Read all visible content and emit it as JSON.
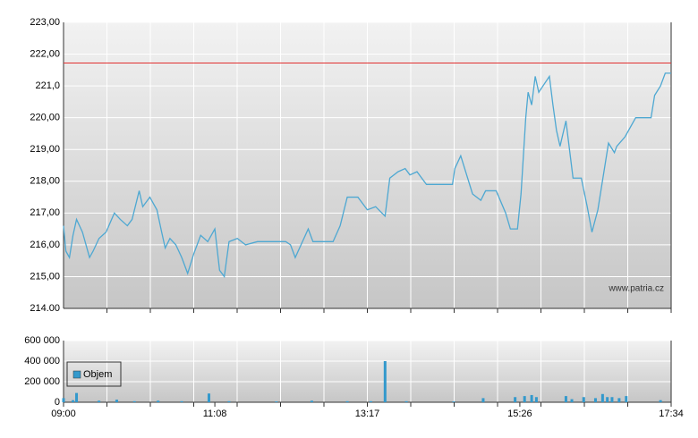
{
  "chart_data": [
    {
      "type": "line",
      "color": "#4ea8d2",
      "x": [
        "09:00",
        "09:02",
        "09:05",
        "09:08",
        "09:11",
        "09:16",
        "09:22",
        "09:25",
        "09:30",
        "09:36",
        "09:43",
        "09:48",
        "09:54",
        "09:58",
        "10:04",
        "10:07",
        "10:13",
        "10:19",
        "10:23",
        "10:26",
        "10:30",
        "10:35",
        "10:40",
        "10:45",
        "10:50",
        "10:56",
        "11:02",
        "11:08",
        "11:12",
        "11:16",
        "11:20",
        "11:27",
        "11:34",
        "11:44",
        "11:53",
        "12:08",
        "12:12",
        "12:16",
        "12:27",
        "12:31",
        "12:39",
        "12:48",
        "12:54",
        "13:00",
        "13:09",
        "13:17",
        "13:24",
        "13:32",
        "13:36",
        "13:43",
        "13:49",
        "13:53",
        "13:59",
        "14:07",
        "14:17",
        "14:29",
        "14:31",
        "14:36",
        "14:46",
        "14:53",
        "14:57",
        "15:06",
        "15:14",
        "15:18",
        "15:24",
        "15:27",
        "15:31",
        "15:33",
        "15:36",
        "15:39",
        "15:42",
        "15:51",
        "15:54",
        "15:57",
        "16:00",
        "16:05",
        "16:08",
        "16:11",
        "16:18",
        "16:23",
        "16:27",
        "16:32",
        "16:41",
        "16:46",
        "16:48",
        "16:55",
        "17:04",
        "17:17",
        "17:20",
        "17:25",
        "17:29",
        "17:34"
      ],
      "values": [
        216.6,
        215.8,
        215.6,
        216.3,
        216.8,
        216.4,
        215.6,
        215.8,
        216.2,
        216.4,
        217.0,
        216.8,
        216.6,
        216.8,
        217.7,
        217.2,
        217.5,
        217.1,
        216.4,
        215.9,
        216.2,
        216.0,
        215.6,
        215.1,
        215.7,
        216.3,
        216.1,
        216.5,
        215.2,
        215.0,
        216.1,
        216.2,
        216.0,
        216.1,
        216.1,
        216.1,
        216.0,
        215.6,
        216.5,
        216.1,
        216.1,
        216.1,
        216.6,
        217.5,
        217.5,
        217.1,
        217.2,
        216.9,
        218.1,
        218.3,
        218.4,
        218.2,
        218.3,
        217.9,
        217.9,
        217.9,
        218.4,
        218.8,
        217.6,
        217.4,
        217.7,
        217.7,
        217.0,
        216.5,
        216.5,
        217.6,
        220.0,
        220.8,
        220.4,
        221.3,
        220.8,
        221.3,
        220.4,
        219.6,
        219.1,
        219.9,
        219.0,
        218.1,
        218.1,
        217.2,
        216.4,
        217.1,
        219.2,
        218.9,
        219.1,
        219.4,
        220.0,
        220.0,
        220.7,
        221.0,
        221.4,
        221.4
      ],
      "xlim": [
        "09:00",
        "17:34"
      ],
      "ylim": [
        214,
        223
      ],
      "yticks": [
        {
          "value": 214,
          "label": "214.00"
        },
        {
          "value": 215,
          "label": "215,00"
        },
        {
          "value": 216,
          "label": "216,00"
        },
        {
          "value": 217,
          "label": "217,00"
        },
        {
          "value": 218,
          "label": "218,00"
        },
        {
          "value": 219,
          "label": "219,00"
        },
        {
          "value": 220,
          "label": "220,00"
        },
        {
          "value": 221,
          "label": "221,0"
        },
        {
          "value": 222,
          "label": "222,00"
        },
        {
          "value": 223,
          "label": "223,00"
        }
      ],
      "reference_line": {
        "value": 221.72,
        "color": "#e03030"
      },
      "grid": true,
      "watermark": "www.patria.cz"
    },
    {
      "type": "bar",
      "x": [
        "09:00",
        "09:08",
        "09:11",
        "09:30",
        "09:45",
        "10:00",
        "10:20",
        "10:40",
        "11:03",
        "11:20",
        "12:00",
        "12:30",
        "13:00",
        "13:20",
        "13:32",
        "13:50",
        "14:30",
        "14:55",
        "15:22",
        "15:30",
        "15:36",
        "15:40",
        "16:05",
        "16:10",
        "16:20",
        "16:30",
        "16:36",
        "16:40",
        "16:44",
        "16:50",
        "16:56",
        "17:25"
      ],
      "series": [
        {
          "name": "Objem",
          "color": "#3399cc",
          "values": [
            40000,
            20000,
            90000,
            15000,
            25000,
            10000,
            15000,
            10000,
            85000,
            10000,
            8000,
            15000,
            10000,
            10000,
            400000,
            10000,
            8000,
            40000,
            50000,
            60000,
            70000,
            50000,
            60000,
            30000,
            50000,
            40000,
            80000,
            50000,
            50000,
            40000,
            60000,
            20000
          ]
        }
      ],
      "xlim": [
        "09:00",
        "17:34"
      ],
      "xticks": [
        "09:00",
        "11:08",
        "13:17",
        "15:26",
        "17:34"
      ],
      "ylim": [
        0,
        600000
      ],
      "yticks": [
        0,
        {
          "value": 200000,
          "label": "200 000"
        },
        {
          "value": 400000,
          "label": "400 000"
        },
        {
          "value": 600000,
          "label": "600 000"
        }
      ],
      "legend": "upper left",
      "grid": true
    }
  ]
}
